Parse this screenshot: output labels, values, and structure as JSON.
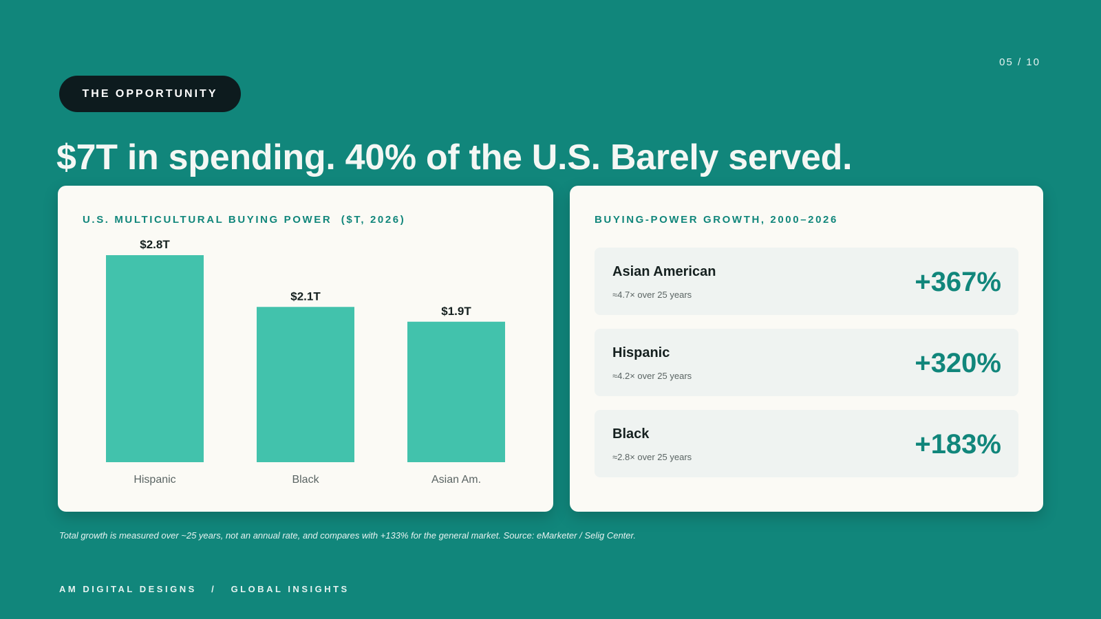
{
  "page": {
    "counter": "05 / 10"
  },
  "section_label": "THE OPPORTUNITY",
  "headline": "$7T in spending. 40% of the U.S. Barely served.",
  "left_card": {
    "title": "U.S. MULTICULTURAL BUYING POWER  ($T, 2026)"
  },
  "right_card": {
    "title": "BUYING-POWER GROWTH, 2000–2026",
    "rows": [
      {
        "name": "Asian American",
        "sub": "≈4.7× over 25 years",
        "value": "+367%"
      },
      {
        "name": "Hispanic",
        "sub": "≈4.2× over 25 years",
        "value": "+320%"
      },
      {
        "name": "Black",
        "sub": "≈2.8× over 25 years",
        "value": "+183%"
      }
    ]
  },
  "footnote": "Total growth is measured over ~25 years, not an annual rate, and compares with +133% for the general market. Source: eMarketer / Selig Center.",
  "footer": {
    "brand": "AM DIGITAL DESIGNS",
    "separator": "/",
    "section": "GLOBAL INSIGHTS"
  },
  "colors": {
    "background": "#11867b",
    "bar": "#42c2ac",
    "accent": "#11867b",
    "card": "#fbfaf5",
    "pill": "#0d1b1e"
  },
  "chart_data": {
    "type": "bar",
    "title": "U.S. MULTICULTURAL BUYING POWER  ($T, 2026)",
    "categories": [
      "Hispanic",
      "Black",
      "Asian Am."
    ],
    "values": [
      2.8,
      2.1,
      1.9
    ],
    "data_labels": [
      "$2.8T",
      "$2.1T",
      "$1.9T"
    ],
    "ylim": [
      0,
      2.8
    ],
    "grid": false,
    "legend": "none"
  }
}
